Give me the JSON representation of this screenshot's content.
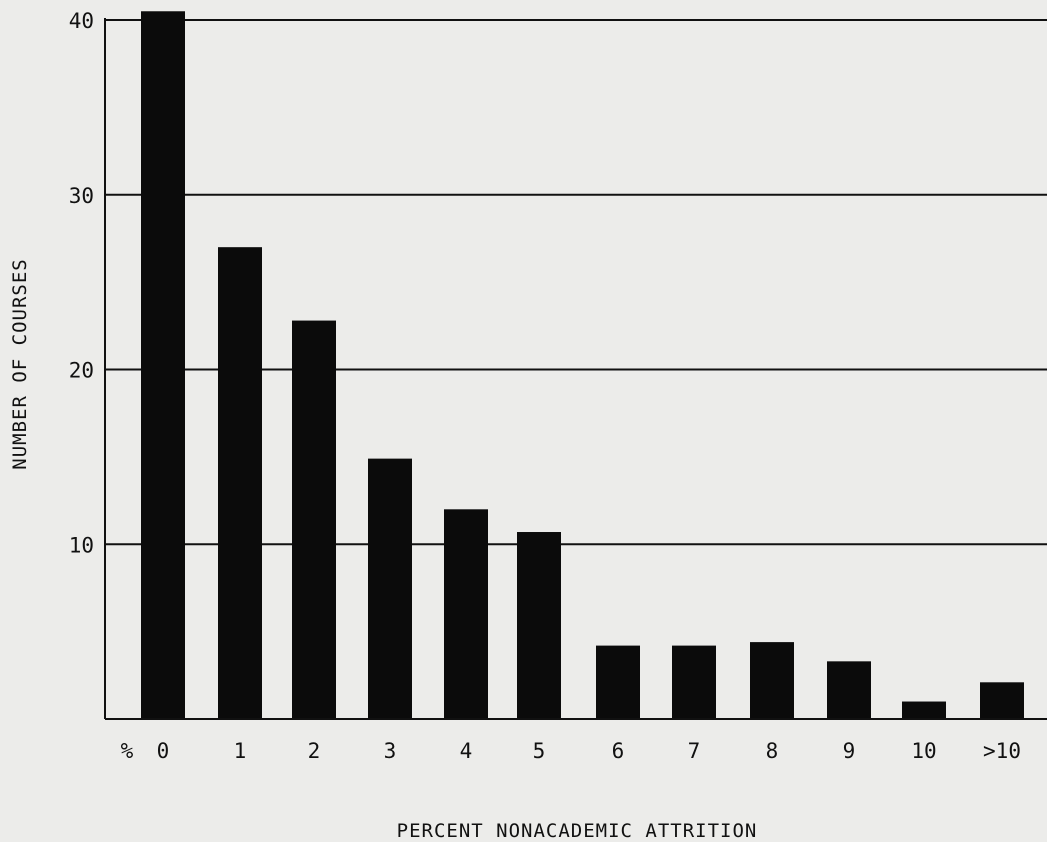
{
  "chart_data": {
    "type": "bar",
    "title": "",
    "xlabel": "PERCENT NONACADEMIC ATTRITION",
    "ylabel": "NUMBER OF COURSES",
    "x_prefix": "%",
    "categories": [
      "0",
      "1",
      "2",
      "3",
      "4",
      "5",
      "6",
      "7",
      "8",
      "9",
      "10",
      ">10"
    ],
    "values": [
      40.5,
      27,
      22.8,
      14.9,
      12.0,
      10.7,
      4.2,
      4.2,
      4.4,
      3.3,
      1.0,
      2.1
    ],
    "ylim": [
      0,
      40
    ],
    "yticks": [
      "10",
      "20",
      "30",
      "40"
    ],
    "grid": true,
    "colors": {
      "bar": "#0b0b0b",
      "grid": "#111111",
      "background": "#ececea"
    }
  }
}
